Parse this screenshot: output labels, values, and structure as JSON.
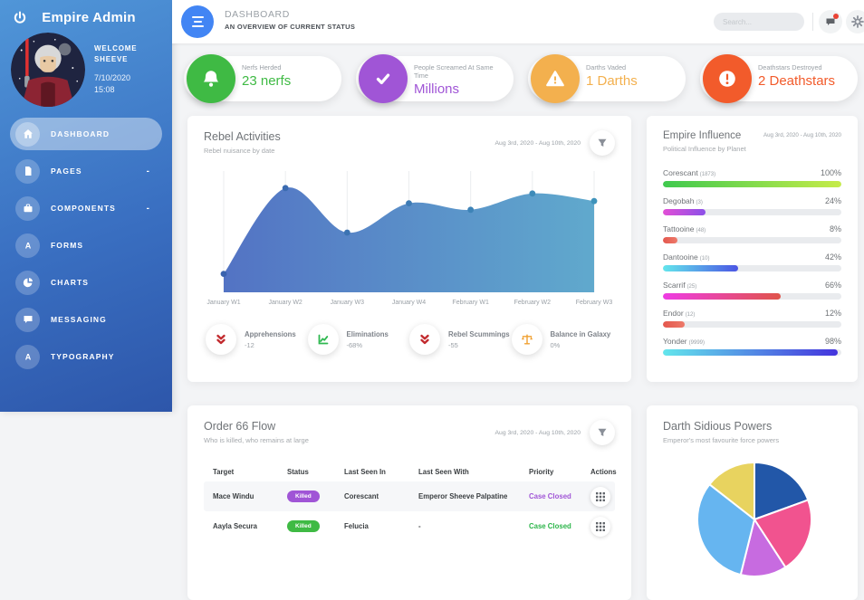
{
  "app": {
    "page_bg": "#f3f4f6"
  },
  "sidebar": {
    "title": "Empire Admin",
    "welcome_line1": "WELCOME",
    "welcome_line2": "SHEEVE",
    "date": "7/10/2020",
    "time": "15:08",
    "caret_glyph": "-",
    "items": [
      {
        "label": "DASHBOARD",
        "icon": "home-icon",
        "active": true
      },
      {
        "label": "PAGES",
        "icon": "pages-icon",
        "has_caret": true
      },
      {
        "label": "COMPONENTS",
        "icon": "briefcase-icon",
        "has_caret": true
      },
      {
        "label": "FORMS",
        "icon": "letter-a-icon"
      },
      {
        "label": "CHARTS",
        "icon": "pie-chart-icon"
      },
      {
        "label": "MESSAGING",
        "icon": "chat-icon"
      },
      {
        "label": "TYPOGRAPHY",
        "icon": "letter-a-icon"
      }
    ]
  },
  "header": {
    "title": "DASHBOARD",
    "subtitle": "AN OVERVIEW OF CURRENT STATUS",
    "search_placeholder": "Search...",
    "menu_color": "#4285f4",
    "icons": [
      "menu-icon",
      "message-icon",
      "gear-icon"
    ]
  },
  "stat_cards": [
    {
      "label": "Nerfs Herded",
      "value": "23 nerfs",
      "icon": "bell-icon",
      "color": "#3fba44"
    },
    {
      "label": "People Screamed At Same Time",
      "value": "Millions",
      "icon": "check-icon",
      "color": "#a055d6"
    },
    {
      "label": "Darths Vaded",
      "value": "1 Darths",
      "icon": "warning-triangle-icon",
      "color": "#f3b04e"
    },
    {
      "label": "Deathstars Destroyed",
      "value": "2 Deathstars",
      "icon": "exclamation-icon",
      "color": "#f25b2b"
    }
  ],
  "rebel_activities": {
    "title": "Rebel Activities",
    "subtitle": "Rebel nuisance by date",
    "date_range": "Aug 3rd, 2020 - Aug 10th, 2020",
    "stats": [
      {
        "label": "Apprehensions",
        "value": "-12",
        "icon": "angles-down-icon",
        "color": "#c22a2e"
      },
      {
        "label": "Eliminations",
        "value": "-68%",
        "icon": "chart-line-icon",
        "color": "#2eb850"
      },
      {
        "label": "Rebel Scummings",
        "value": "-55",
        "icon": "angles-down-icon",
        "color": "#c22a2e"
      },
      {
        "label": "Balance in Galaxy",
        "value": "0%",
        "icon": "balance-scale-icon",
        "color": "#f0a030"
      }
    ]
  },
  "empire_influence": {
    "title": "Empire Influence",
    "subtitle": "Political Influence by Planet",
    "date_range": "Aug 3rd, 2020 - Aug 10th, 2020"
  },
  "order_66": {
    "title": "Order 66 Flow",
    "subtitle": "Who is killed, who remains at large",
    "date_range": "Aug 3rd, 2020 - Aug 10th, 2020",
    "columns": [
      "Target",
      "Status",
      "Last Seen In",
      "Last Seen With",
      "Priority",
      "Actions"
    ],
    "rows": [
      {
        "target": "Mace Windu",
        "status": "Killed",
        "status_color": "#a055d6",
        "last_seen_in": "Corescant",
        "last_seen_with": "Emperor Sheeve Palpatine",
        "priority": "Case Closed",
        "priority_color": "#a055d6"
      },
      {
        "target": "Aayla Secura",
        "status": "Killed",
        "status_color": "#3fba44",
        "last_seen_in": "Felucia",
        "last_seen_with": "-",
        "priority": "Case Closed",
        "priority_color": "#2cb54a"
      }
    ]
  },
  "darth_sidious": {
    "title": "Darth Sidious Powers",
    "subtitle": "Emperor's most favourite force powers"
  },
  "chart_data": [
    {
      "type": "area",
      "title": "Rebel Activities",
      "categories": [
        "January W1",
        "January W2",
        "January W3",
        "January W4",
        "February W1",
        "February W2",
        "February W3"
      ],
      "values": [
        17,
        96,
        55,
        82,
        76,
        91,
        84
      ],
      "ylim": [
        0,
        100
      ],
      "grid": "vertical-only",
      "legend": "none",
      "gradient": [
        "#5373c4",
        "#60a9cd"
      ],
      "point_colors": [
        "#3a63ae",
        "#3f93bb"
      ]
    },
    {
      "type": "bar",
      "title": "Empire Influence",
      "orientation": "horizontal",
      "categories": [
        "Corescant (1873)",
        "Degobah (3)",
        "Tattooine (48)",
        "Dantooine (10)",
        "Scarrif (25)",
        "Endor (12)",
        "Yonder (9999)"
      ],
      "values": [
        100,
        24,
        8,
        42,
        66,
        12,
        98
      ],
      "bars": [
        {
          "planet": "Corescant",
          "count": "(1873)",
          "percent": 100,
          "percent_label": "100%",
          "gradient": [
            "#3fc94e",
            "#c6ec49"
          ]
        },
        {
          "planet": "Degobah",
          "count": "(3)",
          "percent": 24,
          "percent_label": "24%",
          "gradient": [
            "#e24fd6",
            "#8b50e8"
          ]
        },
        {
          "planet": "Tattooine",
          "count": "(48)",
          "percent": 8,
          "percent_label": "8%",
          "gradient": [
            "#e4574d",
            "#ed7a6a"
          ]
        },
        {
          "planet": "Dantooine",
          "count": "(10)",
          "percent": 42,
          "percent_label": "42%",
          "gradient": [
            "#63e6ec",
            "#4b55e4"
          ]
        },
        {
          "planet": "Scarrif",
          "count": "(25)",
          "percent": 66,
          "percent_label": "66%",
          "gradient": [
            "#ee3ce4",
            "#e0544a"
          ]
        },
        {
          "planet": "Endor",
          "count": "(12)",
          "percent": 12,
          "percent_label": "12%",
          "gradient": [
            "#e4574d",
            "#ed7a6a"
          ]
        },
        {
          "planet": "Yonder",
          "count": "(9999)",
          "percent": 98,
          "percent_label": "98%",
          "gradient": [
            "#63e6ec",
            "#4433dd"
          ]
        }
      ]
    },
    {
      "type": "pie",
      "title": "Darth Sidious Powers",
      "slices": [
        {
          "color": "#2257a8",
          "degrees": 70,
          "percent": 19
        },
        {
          "color": "#f1538f",
          "degrees": 77,
          "percent": 21
        },
        {
          "color": "#c76be0",
          "degrees": 47,
          "percent": 13
        },
        {
          "color": "#66b5f0",
          "degrees": 114,
          "percent": 32
        },
        {
          "color": "#e8d35f",
          "degrees": 52,
          "percent": 14
        }
      ]
    }
  ]
}
